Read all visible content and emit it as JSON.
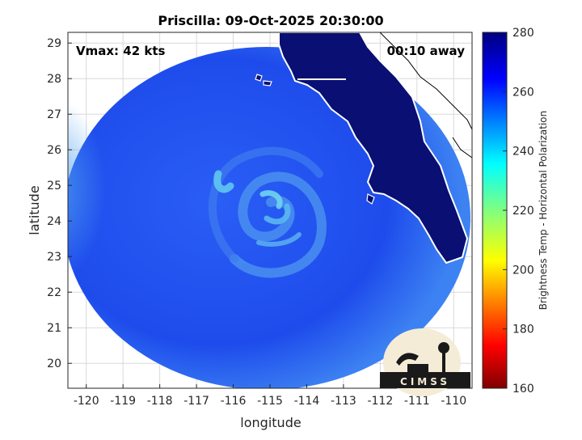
{
  "title": "Priscilla: 09-Oct-2025 20:30:00",
  "vmax_label": "Vmax: 42 kts",
  "time_away_label": "00:10 away",
  "x_axis": {
    "label": "longitude",
    "range": [
      -120.5,
      -109.5
    ],
    "ticks": [
      -120,
      -119,
      -118,
      -117,
      -116,
      -115,
      -114,
      -113,
      -112,
      -111,
      -110
    ]
  },
  "y_axis": {
    "label": "latitude",
    "range": [
      19.3,
      29.3
    ],
    "ticks": [
      20,
      21,
      22,
      23,
      24,
      25,
      26,
      27,
      28,
      29
    ]
  },
  "colorbar": {
    "label": "Brightness Temp - Horizontal Polarization",
    "range": [
      160,
      280
    ],
    "ticks": [
      160,
      180,
      200,
      220,
      240,
      260,
      280
    ],
    "colormap": "jet"
  },
  "storm_center": {
    "lon": -115.0,
    "lat": 24.3
  },
  "logo_text": "CIMSS",
  "colors": {
    "background_swath": "#1f4ff0",
    "land": "#0a0f73",
    "coastline": "#ffffff",
    "grid": "#d9d9d9"
  }
}
